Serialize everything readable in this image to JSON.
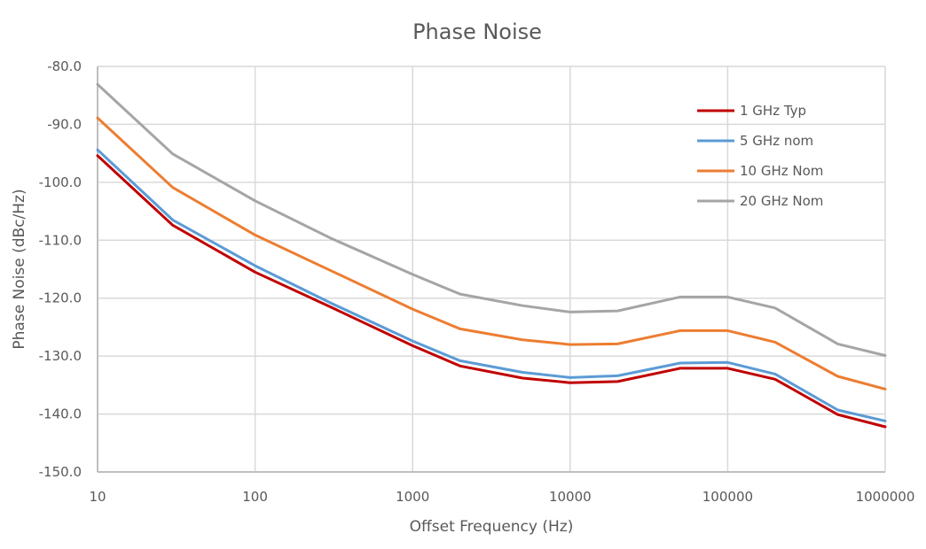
{
  "chart_data": {
    "type": "line",
    "title": "Phase Noise",
    "xlabel": "Offset Frequency (Hz)",
    "ylabel": "Phase Noise (dBc/Hz)",
    "xscale": "log",
    "xlim": [
      10,
      1000000
    ],
    "ylim": [
      -150,
      -80
    ],
    "x_ticks": [
      "10",
      "100",
      "1000",
      "10000",
      "100000",
      "1000000"
    ],
    "y_ticks": [
      "-80.0",
      "-90.0",
      "-100.0",
      "-110.0",
      "-120.0",
      "-130.0",
      "-140.0",
      "-150.0"
    ],
    "grid": true,
    "legend_position": "top-right",
    "x": [
      10,
      30,
      100,
      300,
      1000,
      2000,
      5000,
      10000,
      20000,
      50000,
      100000,
      200000,
      500000,
      1000000
    ],
    "series": [
      {
        "name": "1 GHz Typ",
        "color": "#C00000",
        "values": [
          -95.4,
          -107.4,
          -115.5,
          -121.5,
          -128.2,
          -131.7,
          -133.8,
          -134.6,
          -134.4,
          -132.1,
          -132.1,
          -134.0,
          -140.1,
          -142.2
        ]
      },
      {
        "name": "5 GHz nom",
        "color": "#5B9BD5",
        "values": [
          -94.4,
          -106.5,
          -114.4,
          -120.8,
          -127.4,
          -130.8,
          -132.8,
          -133.7,
          -133.4,
          -131.2,
          -131.1,
          -133.1,
          -139.3,
          -141.2
        ]
      },
      {
        "name": "10 GHz Nom",
        "color": "#ED7D31",
        "values": [
          -88.9,
          -100.9,
          -109.1,
          -115.2,
          -121.9,
          -125.3,
          -127.2,
          -128.0,
          -127.9,
          -125.6,
          -125.6,
          -127.6,
          -133.5,
          -135.7
        ]
      },
      {
        "name": "20 GHz Nom",
        "color": "#A5A5A5",
        "values": [
          -83.1,
          -95.1,
          -103.2,
          -109.6,
          -115.9,
          -119.3,
          -121.3,
          -122.4,
          -122.2,
          -119.8,
          -119.8,
          -121.7,
          -127.9,
          -129.9
        ]
      }
    ]
  }
}
